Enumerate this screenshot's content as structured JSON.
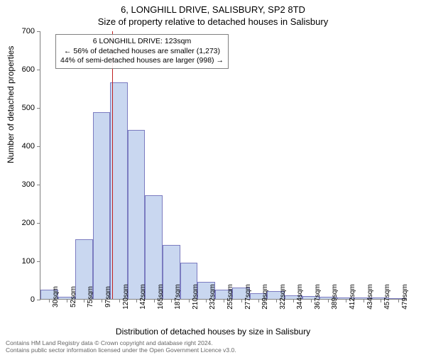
{
  "title_line1": "6, LONGHILL DRIVE, SALISBURY, SP2 8TD",
  "title_line2": "Size of property relative to detached houses in Salisbury",
  "chart": {
    "type": "histogram",
    "ylabel": "Number of detached properties",
    "xlabel": "Distribution of detached houses by size in Salisbury",
    "ylim": [
      0,
      700
    ],
    "ytick_step": 100,
    "yticks": [
      0,
      100,
      200,
      300,
      400,
      500,
      600,
      700
    ],
    "xticks": [
      "30sqm",
      "52sqm",
      "75sqm",
      "97sqm",
      "120sqm",
      "142sqm",
      "165sqm",
      "187sqm",
      "210sqm",
      "232sqm",
      "255sqm",
      "277sqm",
      "299sqm",
      "322sqm",
      "344sqm",
      "367sqm",
      "389sqm",
      "412sqm",
      "434sqm",
      "457sqm",
      "479sqm"
    ],
    "values": [
      25,
      5,
      155,
      487,
      565,
      440,
      271,
      140,
      95,
      45,
      25,
      30,
      15,
      20,
      10,
      8,
      6,
      3,
      3,
      3,
      2
    ],
    "bar_fill": "#c9d7f0",
    "bar_stroke": "#7b7bc0",
    "bar_width_ratio": 1.0,
    "background_color": "#ffffff",
    "axis_color": "#808080",
    "marker_line_color": "#c02020",
    "marker_index": 4
  },
  "info_box": {
    "line1": "6 LONGHILL DRIVE: 123sqm",
    "line2": "← 56% of detached houses are smaller (1,273)",
    "line3": "44% of semi-detached houses are larger (998) →"
  },
  "footer": {
    "line1": "Contains HM Land Registry data © Crown copyright and database right 2024.",
    "line2": "Contains public sector information licensed under the Open Government Licence v3.0."
  }
}
